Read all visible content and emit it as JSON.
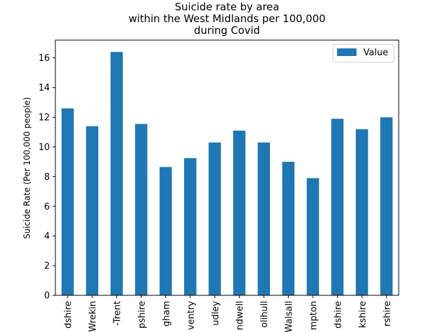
{
  "chart_data": {
    "type": "bar",
    "title_lines": [
      "Suicide rate by area",
      "within the West Midlands per 100,000",
      "during Covid"
    ],
    "xlabel": "",
    "ylabel": "Suicide Rate (Per 100,000 people)",
    "ylim": [
      0,
      17.2
    ],
    "yticks": [
      0,
      2,
      4,
      6,
      8,
      10,
      12,
      14,
      16
    ],
    "categories": [
      "dshire",
      "Wrekin",
      "-Trent",
      "pshire",
      "gham",
      "ventry",
      "udley",
      "ndwell",
      "olihull",
      "Walsall",
      "mpton",
      "dshire",
      "kshire",
      "rshire"
    ],
    "series": [
      {
        "name": "Value",
        "color": "#1f77b4",
        "values": [
          12.6,
          11.4,
          16.4,
          11.55,
          8.65,
          9.25,
          10.3,
          11.1,
          10.3,
          9.0,
          7.9,
          11.9,
          11.2,
          12.0
        ]
      }
    ],
    "legend_position": "top-right",
    "grid": false
  }
}
